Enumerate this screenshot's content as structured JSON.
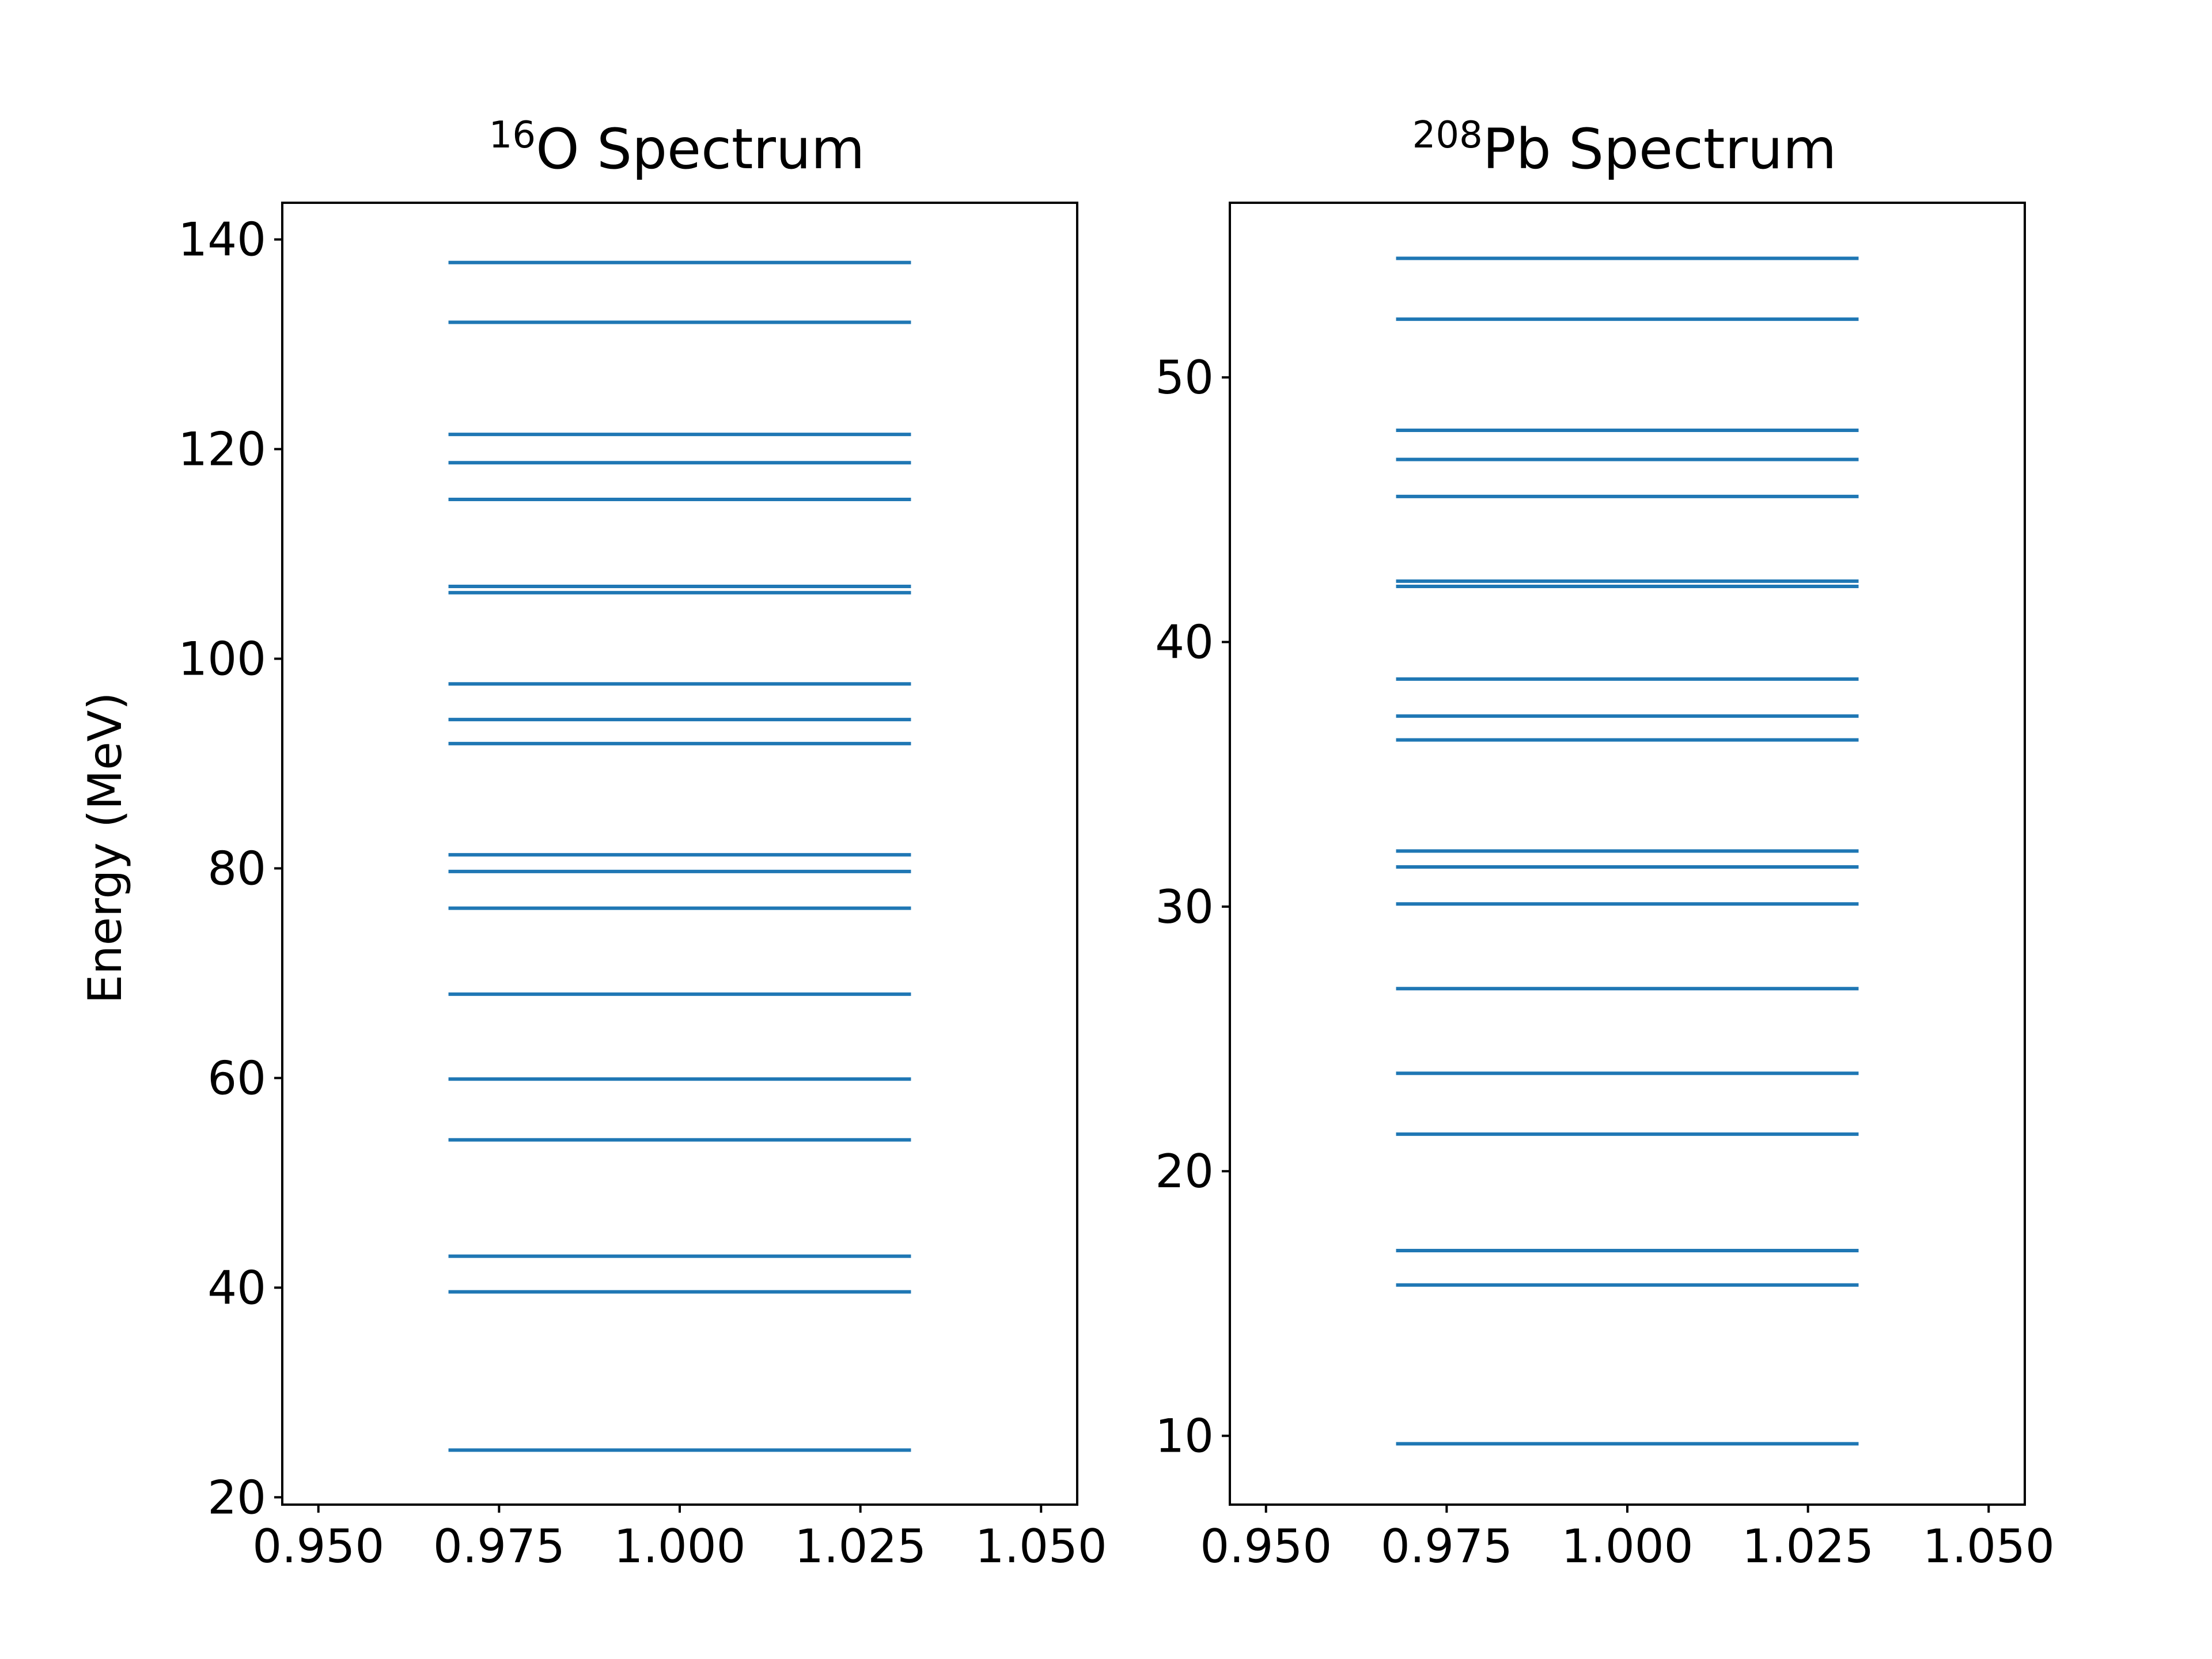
{
  "chart_data": [
    {
      "type": "line",
      "title": {
        "superscript": "16",
        "text": "O Spectrum"
      },
      "xlabel": "",
      "ylabel": "Energy (MeV)",
      "xlim": [
        0.945,
        1.055
      ],
      "ylim": [
        19.3,
        143.5
      ],
      "xticks": [
        "0.950",
        "0.975",
        "1.000",
        "1.025",
        "1.050"
      ],
      "yticks": [
        "20",
        "40",
        "60",
        "80",
        "100",
        "120",
        "140"
      ],
      "level_x_range": [
        0.968,
        1.032
      ],
      "color": "#1f77b4",
      "levels": [
        24.5,
        39.6,
        43.0,
        54.1,
        59.9,
        68.0,
        76.2,
        79.7,
        81.3,
        91.9,
        94.2,
        97.6,
        106.3,
        106.9,
        115.2,
        118.7,
        121.4,
        132.1,
        137.8
      ]
    },
    {
      "type": "line",
      "title": {
        "superscript": "208",
        "text": "Pb Spectrum"
      },
      "xlabel": "",
      "ylabel": "",
      "xlim": [
        0.945,
        1.055
      ],
      "ylim": [
        7.4,
        56.6
      ],
      "xticks": [
        "0.950",
        "0.975",
        "1.000",
        "1.025",
        "1.050"
      ],
      "yticks": [
        "10",
        "20",
        "30",
        "40",
        "50"
      ],
      "level_x_range": [
        0.968,
        1.032
      ],
      "color": "#1f77b4",
      "levels": [
        9.7,
        15.7,
        17.0,
        21.4,
        23.7,
        26.9,
        30.1,
        31.5,
        32.1,
        36.3,
        37.2,
        38.6,
        42.1,
        42.3,
        45.5,
        46.9,
        48.0,
        52.2,
        54.5
      ]
    }
  ]
}
